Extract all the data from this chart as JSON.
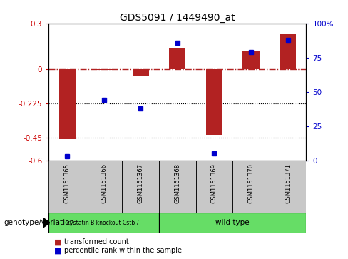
{
  "title": "GDS5091 / 1449490_at",
  "samples": [
    "GSM1151365",
    "GSM1151366",
    "GSM1151367",
    "GSM1151368",
    "GSM1151369",
    "GSM1151370",
    "GSM1151371"
  ],
  "bar_values": [
    -0.46,
    -0.005,
    -0.05,
    0.14,
    -0.43,
    0.115,
    0.23
  ],
  "percentile_values": [
    3,
    44,
    38,
    86,
    5,
    79,
    88
  ],
  "ylim_left": [
    -0.6,
    0.3
  ],
  "ylim_right": [
    0,
    100
  ],
  "yticks_left": [
    -0.6,
    -0.45,
    -0.225,
    0.0,
    0.3
  ],
  "ytick_labels_left": [
    "-0.6",
    "-0.45",
    "-0.225",
    "0",
    "0.3"
  ],
  "yticks_right": [
    0,
    25,
    50,
    75,
    100
  ],
  "ytick_labels_right": [
    "0",
    "25",
    "50",
    "75",
    "100%"
  ],
  "hline_y": 0.0,
  "dotted_lines": [
    -0.225,
    -0.45
  ],
  "bar_color": "#b22222",
  "percentile_color": "#0000cc",
  "bar_width": 0.45,
  "group_labels": [
    "cystatin B knockout Cstb-/-",
    "wild type"
  ],
  "group_colors": [
    "#77ee77",
    "#77ee77"
  ],
  "group_sample_ranges": [
    [
      0,
      3
    ],
    [
      3,
      7
    ]
  ],
  "genotype_label": "genotype/variation",
  "legend_bar_label": "transformed count",
  "legend_percentile_label": "percentile rank within the sample",
  "ylabel_left_color": "#cc0000",
  "ylabel_right_color": "#0000cc",
  "gray_color": "#c8c8c8",
  "green_color": "#66dd66"
}
